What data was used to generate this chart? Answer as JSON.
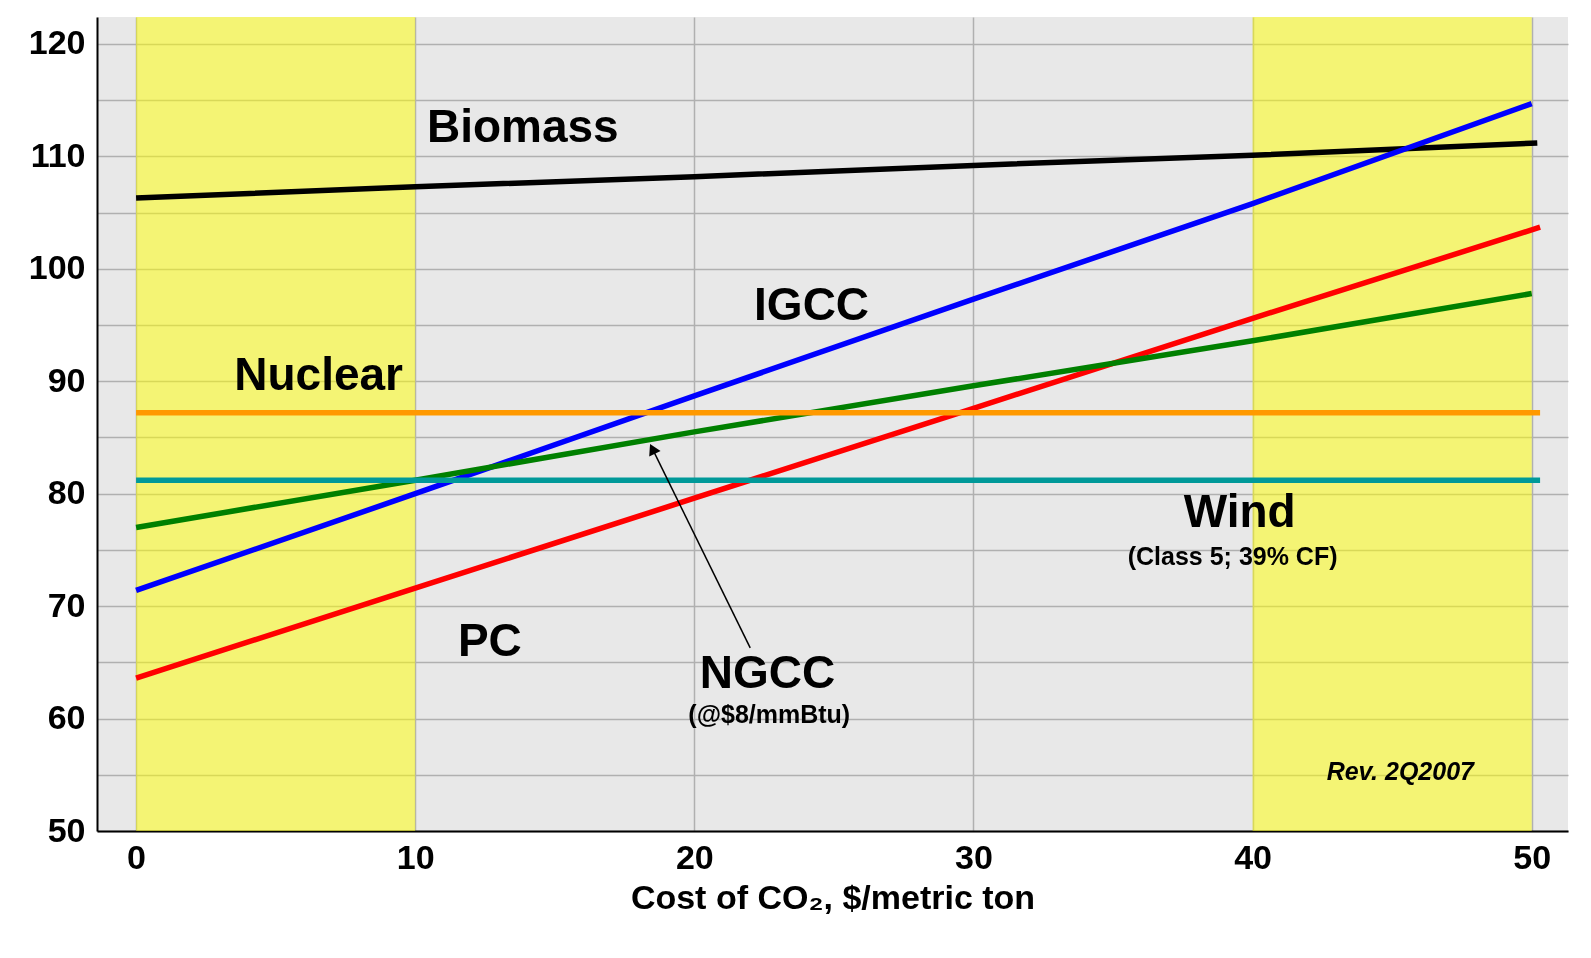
{
  "chart_data": {
    "type": "line",
    "xlabel": "Cost of CO₂, $/metric ton",
    "xlim": [
      -1.4,
      51.3
    ],
    "xticks": [
      0,
      10,
      20,
      30,
      40,
      50
    ],
    "ylim": [
      50,
      122.4
    ],
    "yticks": [
      50,
      {
        "value": 55,
        "label": null
      },
      60,
      {
        "value": 65,
        "label": null
      },
      70,
      {
        "value": 75,
        "label": null
      },
      80,
      {
        "value": 85,
        "label": null
      },
      90,
      {
        "value": 95,
        "label": null
      },
      100,
      {
        "value": 105,
        "label": null
      },
      110,
      {
        "value": 115,
        "label": null
      },
      120
    ],
    "grid": true,
    "marker": "none",
    "line_style": "solid",
    "series": [
      {
        "name": "Biomass",
        "color": "#000000",
        "x": [
          0,
          10,
          20,
          30,
          40,
          50.2
        ],
        "values": [
          106.3,
          107.3,
          108.2,
          109.2,
          110.1,
          111.2
        ]
      },
      {
        "name": "IGCC",
        "color": "#0000ff",
        "x": [
          0,
          10,
          20,
          30,
          40,
          50
        ],
        "values": [
          71.4,
          80,
          88.7,
          97.3,
          105.8,
          114.7
        ]
      },
      {
        "name": "PC",
        "color": "#ff0000",
        "x": [
          0,
          10,
          20,
          30,
          40,
          50.3
        ],
        "values": [
          63.6,
          71.6,
          79.6,
          87.6,
          95.6,
          103.7
        ]
      },
      {
        "name": "NGCC",
        "color": "#008000",
        "x": [
          0,
          10,
          20,
          30,
          40,
          50
        ],
        "values": [
          77,
          81.2,
          85.5,
          89.6,
          93.6,
          97.8
        ]
      },
      {
        "name": "Nuclear",
        "color": "#ff9900",
        "x": [
          0,
          50.3
        ],
        "values": [
          87.2,
          87.2
        ]
      },
      {
        "name": "Wind",
        "color": "#009999",
        "x": [
          0,
          50.3
        ],
        "values": [
          81.2,
          81.2
        ]
      }
    ],
    "bands": [
      {
        "axis": "x",
        "from": 0,
        "to": 10,
        "color": "#ffff00"
      },
      {
        "axis": "x",
        "from": 40,
        "to": 50,
        "color": "#ffff00"
      }
    ],
    "annotations": [
      "(Class 5; 39% CF)",
      "(@$8/mmBtu)",
      "Rev. 2Q2007"
    ]
  }
}
